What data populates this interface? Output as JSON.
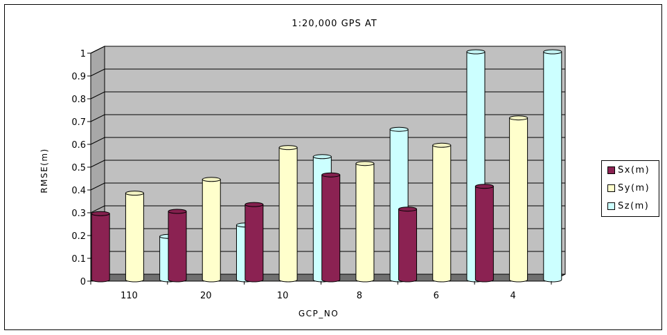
{
  "chart_data": {
    "type": "bar",
    "title": "1:20,000 GPS AT",
    "xlabel": "GCP_NO",
    "ylabel": "RMSE(m)",
    "categories": [
      "110",
      "20",
      "10",
      "8",
      "6",
      "4"
    ],
    "series": [
      {
        "name": "Sx(m)",
        "color": "#8b2252",
        "values": [
          0.29,
          0.3,
          0.33,
          0.46,
          0.31,
          0.41
        ]
      },
      {
        "name": "Sy(m)",
        "color": "#ffffcc",
        "values": [
          0.38,
          0.44,
          0.58,
          0.51,
          0.59,
          0.71
        ]
      },
      {
        "name": "Sz(m)",
        "color": "#ccffff",
        "values": [
          0.19,
          0.24,
          0.54,
          0.66,
          1.0,
          1.0
        ]
      }
    ],
    "yticks": [
      "0",
      "0.1",
      "0.2",
      "0.3",
      "0.4",
      "0.5",
      "0.6",
      "0.7",
      "0.8",
      "0.9",
      "1"
    ],
    "ylim": [
      0,
      1
    ],
    "grid": true,
    "legend_position": "right",
    "plot_wall_color": "#c0c0c0"
  }
}
